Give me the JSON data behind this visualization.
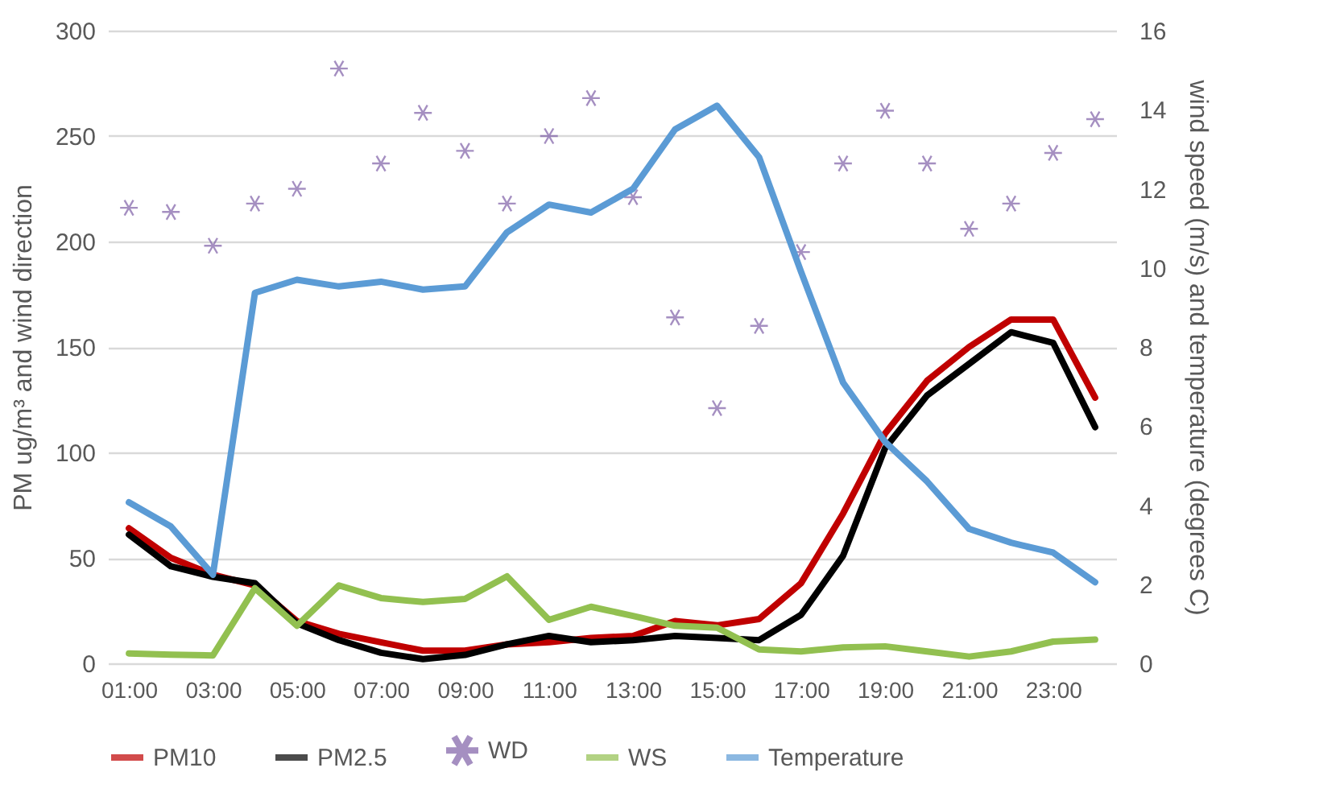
{
  "chart_data": {
    "type": "line",
    "ylabel": "PM ug/m³ and wind direction",
    "y2label": "wind speed (m/s) and temperature (degrees C)",
    "categories": [
      "01:00",
      null,
      "03:00",
      null,
      "05:00",
      null,
      "07:00",
      null,
      "09:00",
      null,
      "11:00",
      null,
      "13:00",
      null,
      "15:00",
      null,
      "17:00",
      null,
      "19:00",
      null,
      "21:00",
      null,
      "23:00",
      null
    ],
    "ylim": [
      0,
      300
    ],
    "yticks": [
      0,
      50,
      100,
      150,
      200,
      250,
      300
    ],
    "y2lim": [
      0,
      16
    ],
    "y2ticks": [
      0,
      2,
      4,
      6,
      8,
      10,
      12,
      14,
      16
    ],
    "grid": "y",
    "legend": "bottom",
    "line_style": "solid",
    "series": [
      {
        "name": "PM10",
        "color": "#c00000",
        "values": [
          64,
          50,
          42,
          37,
          20,
          14,
          10,
          6,
          6,
          9,
          10,
          12,
          13,
          20,
          18,
          21,
          38,
          71,
          109,
          134,
          150,
          163,
          163,
          126
        ]
      },
      {
        "name": "PM2.5",
        "color": "#000000",
        "values": [
          61,
          46,
          41,
          38,
          19,
          11,
          5,
          2,
          4,
          9,
          13,
          10,
          11,
          13,
          12,
          11,
          23,
          51,
          102,
          127,
          142,
          157,
          152,
          112
        ]
      },
      {
        "name": "WD",
        "type": "scatter",
        "marker": "cross",
        "color": "#7f60a8",
        "values": [
          216,
          214,
          198,
          218,
          225,
          282,
          237,
          261,
          243,
          218,
          250,
          268,
          221,
          164,
          121,
          160,
          195,
          237,
          262,
          237,
          206,
          218,
          242,
          258
        ]
      },
      {
        "name": "WS",
        "color": "#92c050",
        "axis": "y2",
        "values": [
          0.25,
          0.22,
          0.2,
          1.9,
          0.95,
          1.97,
          1.65,
          1.55,
          1.63,
          2.2,
          1.1,
          1.43,
          1.2,
          0.95,
          0.9,
          0.35,
          0.3,
          0.4,
          0.43,
          0.3,
          0.17,
          0.3,
          0.55,
          0.6
        ]
      },
      {
        "name": "Temperature",
        "color": "#5b9bd5",
        "axis": "y2",
        "values": [
          4.07,
          3.46,
          2.24,
          9.37,
          9.7,
          9.53,
          9.65,
          9.45,
          9.53,
          10.9,
          11.6,
          11.4,
          12.0,
          13.5,
          14.1,
          12.8,
          9.9,
          7.1,
          5.6,
          4.6,
          3.4,
          3.05,
          2.8,
          2.05
        ]
      }
    ]
  }
}
